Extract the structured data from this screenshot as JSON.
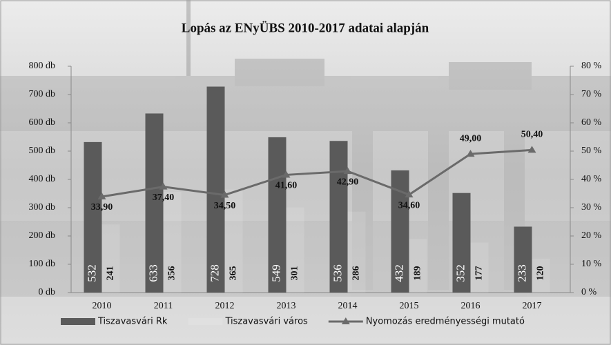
{
  "chart_data": {
    "type": "bar-line",
    "title": "Lopás az ENyÜBS 2010-2017 adatai alapján",
    "categories": [
      "2010",
      "2011",
      "2012",
      "2013",
      "2014",
      "2015",
      "2016",
      "2017"
    ],
    "series": [
      {
        "name": "Tiszavasvári Rk",
        "color": "#5a5a5a",
        "type": "bar",
        "values": [
          532,
          633,
          728,
          549,
          536,
          432,
          352,
          233
        ]
      },
      {
        "name": "Tiszavasvári város",
        "color": "#ffffff",
        "type": "bar",
        "values": [
          241,
          356,
          365,
          301,
          286,
          189,
          177,
          120
        ]
      },
      {
        "name": "Nyomozás eredményességi mutató",
        "color": "#6a6a6a",
        "type": "line",
        "axis": "y2",
        "values": [
          33.9,
          37.4,
          34.5,
          41.6,
          42.9,
          34.6,
          49.0,
          50.4
        ],
        "value_labels": [
          "33,90",
          "37,40",
          "34,50",
          "41,60",
          "42,90",
          "34,60",
          "49,00",
          "50,40"
        ]
      }
    ],
    "ylim": [
      0,
      800
    ],
    "yticks": [
      {
        "value": 0,
        "label": "0 db"
      },
      {
        "value": 100,
        "label": "100 db"
      },
      {
        "value": 200,
        "label": "200 db"
      },
      {
        "value": 300,
        "label": "300 db"
      },
      {
        "value": 400,
        "label": "400 db"
      },
      {
        "value": 500,
        "label": "500 db"
      },
      {
        "value": 600,
        "label": "600 db"
      },
      {
        "value": 700,
        "label": "700 db"
      },
      {
        "value": 800,
        "label": "800 db"
      }
    ],
    "y2lim": [
      0,
      80
    ],
    "y2ticks": [
      {
        "value": 0,
        "label": "0 %"
      },
      {
        "value": 10,
        "label": "10 %"
      },
      {
        "value": 20,
        "label": "20 %"
      },
      {
        "value": 30,
        "label": "30 %"
      },
      {
        "value": 40,
        "label": "40 %"
      },
      {
        "value": 50,
        "label": "50 %"
      },
      {
        "value": 60,
        "label": "60 %"
      },
      {
        "value": 70,
        "label": "70 %"
      },
      {
        "value": 80,
        "label": "80 %"
      }
    ],
    "legend": "bottom"
  }
}
